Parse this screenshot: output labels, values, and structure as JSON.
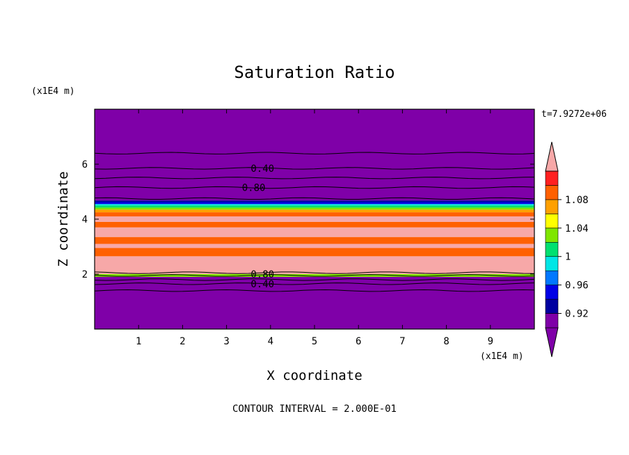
{
  "chart_data": {
    "type": "filled-contour",
    "title": "Saturation Ratio",
    "xlabel": "X coordinate",
    "ylabel": "Z coordinate",
    "x_unit": "(x1E4 m)",
    "z_unit": "(x1E4 m)",
    "time_label": "t=7.9272e+06",
    "footer": "CONTOUR INTERVAL = 2.000E-01",
    "xlim": [
      0,
      10
    ],
    "zlim": [
      0,
      8
    ],
    "x_ticks": [
      1,
      2,
      3,
      4,
      5,
      6,
      7,
      8,
      9
    ],
    "z_ticks": [
      2,
      4,
      6
    ],
    "contour_labels": [
      {
        "text": "0.40",
        "x": 3.55,
        "z": 5.85
      },
      {
        "text": "0.80",
        "x": 3.35,
        "z": 5.15
      },
      {
        "text": "0.80",
        "x": 3.55,
        "z": 2.0
      },
      {
        "text": "0.40",
        "x": 3.55,
        "z": 1.65
      }
    ],
    "contour_lines_z": [
      6.4,
      5.85,
      5.5,
      5.15,
      4.75,
      2.05,
      1.95,
      1.8,
      1.65,
      1.4
    ],
    "bands": [
      {
        "z0": 0.0,
        "z1": 1.9,
        "level": "below"
      },
      {
        "z0": 1.9,
        "z1": 2.0,
        "level": 1.02
      },
      {
        "z0": 2.0,
        "z1": 2.65,
        "level": "above"
      },
      {
        "z0": 2.65,
        "z1": 2.95,
        "level": 1.08
      },
      {
        "z0": 2.95,
        "z1": 3.1,
        "level": "above"
      },
      {
        "z0": 3.1,
        "z1": 3.35,
        "level": 1.08
      },
      {
        "z0": 3.35,
        "z1": 3.7,
        "level": "above"
      },
      {
        "z0": 3.7,
        "z1": 3.9,
        "level": 1.08
      },
      {
        "z0": 3.9,
        "z1": 4.1,
        "level": "above"
      },
      {
        "z0": 4.1,
        "z1": 4.25,
        "level": 1.08
      },
      {
        "z0": 4.25,
        "z1": 4.35,
        "level": 1.06
      },
      {
        "z0": 4.35,
        "z1": 4.42,
        "level": 1.02
      },
      {
        "z0": 4.42,
        "z1": 4.5,
        "level": 1.0
      },
      {
        "z0": 4.5,
        "z1": 4.55,
        "level": 0.98
      },
      {
        "z0": 4.55,
        "z1": 4.62,
        "level": 0.94
      },
      {
        "z0": 4.62,
        "z1": 4.68,
        "level": 0.92
      },
      {
        "z0": 4.68,
        "z1": 8.0,
        "level": "below"
      }
    ],
    "colorbar": {
      "labels": [
        "1.08",
        "1.04",
        "1",
        "0.96",
        "0.92"
      ],
      "label_levels": [
        1.08,
        1.04,
        1.0,
        0.96,
        0.92
      ],
      "levels": [
        0.92,
        0.94,
        0.96,
        0.98,
        1.0,
        1.02,
        1.04,
        1.06,
        1.08,
        1.1
      ],
      "below_color": "#7f00a8",
      "above_color": "#f7a8a8",
      "colors": [
        "#0000a0",
        "#0000e6",
        "#0078ff",
        "#00e6e6",
        "#00e070",
        "#7fe600",
        "#ffff00",
        "#ffa000",
        "#ff6000",
        "#ff2020"
      ]
    }
  }
}
